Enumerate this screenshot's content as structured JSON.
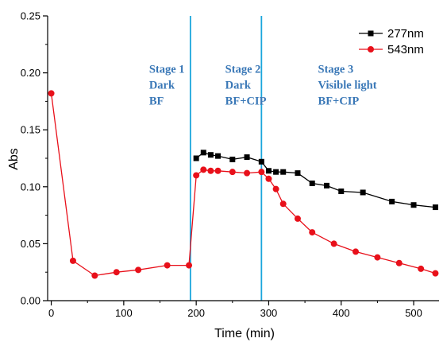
{
  "colors": {
    "series_277": "#000000",
    "series_543": "#e8101a",
    "stage_line": "#1aa6dc",
    "stage_text": "#3a78b7"
  },
  "chart_data": {
    "type": "line",
    "xlabel": "Time (min)",
    "ylabel": "Abs",
    "xlim": [
      -5,
      535
    ],
    "ylim": [
      0.0,
      0.25
    ],
    "x_ticks": [
      0,
      100,
      200,
      300,
      400,
      500
    ],
    "y_ticks": [
      "0.00",
      "0.05",
      "0.10",
      "0.15",
      "0.20",
      "0.25"
    ],
    "grid": false,
    "legend_position": "top-right",
    "series": [
      {
        "name": "277nm",
        "marker": "square",
        "color": "#000000",
        "x": [
          200,
          210,
          220,
          230,
          250,
          270,
          290,
          300,
          310,
          320,
          340,
          360,
          380,
          400,
          430,
          470,
          500,
          530
        ],
        "y": [
          0.125,
          0.13,
          0.128,
          0.127,
          0.124,
          0.126,
          0.122,
          0.114,
          0.113,
          0.113,
          0.112,
          0.103,
          0.101,
          0.096,
          0.095,
          0.087,
          0.084,
          0.082
        ]
      },
      {
        "name": "543nm",
        "marker": "circle",
        "color": "#e8101a",
        "x": [
          0,
          30,
          60,
          90,
          120,
          160,
          190,
          200,
          210,
          220,
          230,
          250,
          270,
          290,
          300,
          310,
          320,
          340,
          360,
          390,
          420,
          450,
          480,
          510,
          530
        ],
        "y": [
          0.182,
          0.035,
          0.022,
          0.025,
          0.027,
          0.031,
          0.031,
          0.11,
          0.115,
          0.114,
          0.114,
          0.113,
          0.112,
          0.113,
          0.107,
          0.098,
          0.085,
          0.072,
          0.06,
          0.05,
          0.043,
          0.038,
          0.033,
          0.028,
          0.024
        ]
      }
    ],
    "stage_lines_x": [
      192,
      290
    ],
    "annotations": [
      {
        "x": 135,
        "y": 0.2,
        "lines": [
          "Stage 1",
          "Dark",
          "BF"
        ]
      },
      {
        "x": 240,
        "y": 0.2,
        "lines": [
          "Stage 2",
          "Dark",
          "BF+CIP"
        ]
      },
      {
        "x": 368,
        "y": 0.2,
        "lines": [
          "Stage 3",
          "Visible light",
          "BF+CIP"
        ]
      }
    ]
  }
}
